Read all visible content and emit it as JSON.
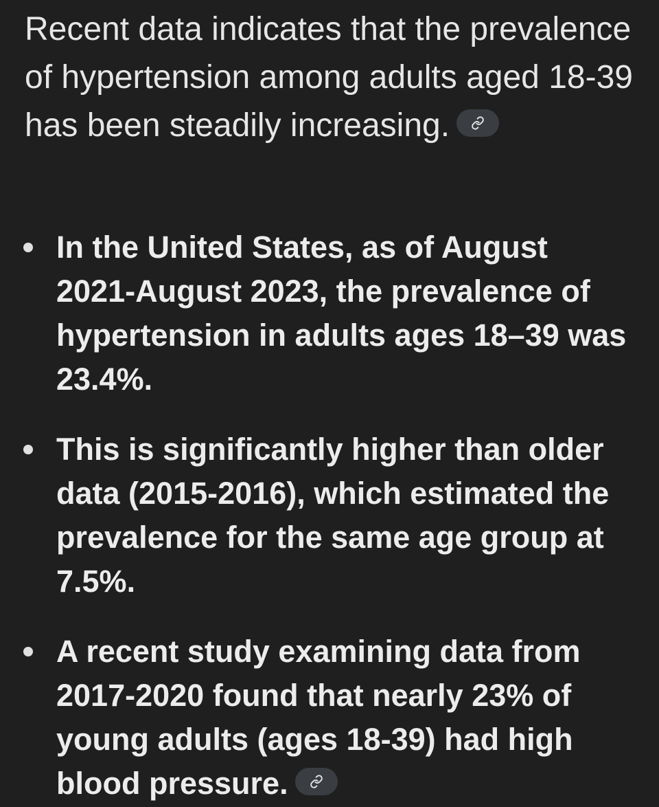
{
  "intro": {
    "text": "Recent data indicates that the prevalence of hypertension among adults aged 18-39 has been steadily increasing.",
    "citation_icon": "link-icon"
  },
  "bullets": [
    {
      "text": "In the United States, as of August 2021-August 2023, the prevalence of hypertension in adults ages 18–39 was 23.4%."
    },
    {
      "text": "This is significantly higher than older data (2015-2016), which estimated the prevalence for the same age group at 7.5%."
    },
    {
      "text": "A recent study examining data from 2017-2020 found that nearly 23% of young adults (ages 18-39) had high blood pressure.",
      "citation_icon": "link-icon"
    }
  ],
  "colors": {
    "background": "#1f1f1f",
    "text": "#e8e8e8",
    "chip": "#3a3d42"
  }
}
